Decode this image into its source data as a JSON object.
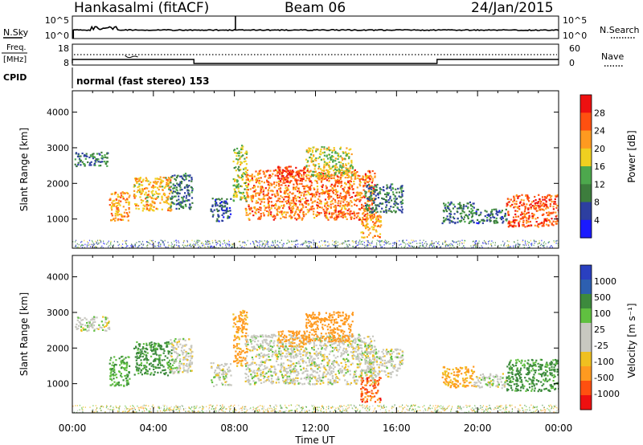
{
  "header": {
    "station": "Hankasalmi (fitACF)",
    "beam": "Beam 06",
    "date": "24/Jan/2015"
  },
  "colors": {
    "power_scale": [
      "#1a1aff",
      "#2d3fa0",
      "#3d7d3d",
      "#4da84d",
      "#f0d020",
      "#ff9a20",
      "#ff5010",
      "#ee1010"
    ],
    "velocity_scale": [
      "#ee1010",
      "#ff5010",
      "#ff9a20",
      "#f0c020",
      "#c8c8c0",
      "#c8c8c0",
      "#60c040",
      "#3d8a3d",
      "#2d5fb0",
      "#2a40c0"
    ]
  },
  "chart_data": [
    {
      "type": "line",
      "name": "sky-noise-panel",
      "left_label": "N.Sky",
      "right_label": "N.Search",
      "left_ticks": [
        "10^5",
        "10^0"
      ],
      "right_ticks": [
        "10^5",
        "10^0"
      ]
    },
    {
      "type": "line",
      "name": "frequency-panel",
      "left_label_top": "Freq.",
      "left_label_bottom": "[MHz]",
      "right_label": "Nave",
      "left_ticks": [
        "18",
        "8"
      ],
      "right_ticks": [
        "60",
        "0"
      ],
      "cpid_label": "CPID",
      "cpid_text": "normal (fast stereo) 153",
      "nave_high_segments": [
        [
          0,
          6
        ],
        [
          18,
          24
        ]
      ],
      "nave_low_segments": [
        [
          6,
          18
        ]
      ]
    },
    {
      "type": "heatmap",
      "name": "power",
      "ylabel": "Slant Range [km]",
      "ylim": [
        180,
        4600
      ],
      "y_ticks": [
        "1000",
        "2000",
        "3000",
        "4000"
      ],
      "xlim": [
        0,
        24
      ],
      "colorbar_label": "Power [dB]",
      "colorbar_ticks": [
        "28",
        "24",
        "20",
        "16",
        "12",
        "8",
        "4"
      ],
      "blobs": [
        {
          "t0": 0.1,
          "t1": 1.8,
          "r0": 2500,
          "r1": 2900,
          "p": 10
        },
        {
          "t0": 1.8,
          "t1": 2.8,
          "r0": 950,
          "r1": 1800,
          "p": 22
        },
        {
          "t0": 3.0,
          "t1": 4.9,
          "r0": 1250,
          "r1": 2200,
          "p": 20
        },
        {
          "t0": 4.8,
          "t1": 5.9,
          "r0": 1300,
          "r1": 2300,
          "p": 9
        },
        {
          "t0": 6.8,
          "t1": 7.8,
          "r0": 950,
          "r1": 1600,
          "p": 7
        },
        {
          "t0": 7.9,
          "t1": 8.6,
          "r0": 1500,
          "r1": 3100,
          "p": 16
        },
        {
          "t0": 8.5,
          "t1": 14.9,
          "r0": 1000,
          "r1": 2400,
          "p": 24
        },
        {
          "t0": 10.1,
          "t1": 11.5,
          "r0": 2050,
          "r1": 2500,
          "p": 28
        },
        {
          "t0": 11.5,
          "t1": 13.8,
          "r0": 2200,
          "r1": 3050,
          "p": 17
        },
        {
          "t0": 14.2,
          "t1": 15.2,
          "r0": 500,
          "r1": 1200,
          "p": 22
        },
        {
          "t0": 14.4,
          "t1": 16.3,
          "r0": 1200,
          "r1": 2000,
          "p": 9
        },
        {
          "t0": 18.2,
          "t1": 19.8,
          "r0": 900,
          "r1": 1500,
          "p": 9
        },
        {
          "t0": 19.8,
          "t1": 21.4,
          "r0": 900,
          "r1": 1300,
          "p": 8
        },
        {
          "t0": 21.4,
          "t1": 24.0,
          "r0": 800,
          "r1": 1700,
          "p": 26
        }
      ]
    },
    {
      "type": "heatmap",
      "name": "velocity",
      "ylabel": "Slant Range [km]",
      "ylim": [
        180,
        4600
      ],
      "y_ticks": [
        "1000",
        "2000",
        "3000",
        "4000"
      ],
      "xlim": [
        0,
        24
      ],
      "xlabel": "Time UT",
      "x_ticks": [
        "00:00",
        "04:00",
        "08:00",
        "12:00",
        "16:00",
        "20:00",
        "00:00"
      ],
      "colorbar_label": "Velocity [m s⁻¹]",
      "colorbar_ticks": [
        "1000",
        "500",
        "100",
        "25",
        "-25",
        "-100",
        "-500",
        "-1000"
      ],
      "blobs": [
        {
          "t0": 0.1,
          "t1": 1.8,
          "r0": 2500,
          "r1": 2900,
          "v": 0
        },
        {
          "t0": 1.8,
          "t1": 2.8,
          "r0": 950,
          "r1": 1800,
          "v": 80
        },
        {
          "t0": 3.0,
          "t1": 4.9,
          "r0": 1250,
          "r1": 2200,
          "v": 150
        },
        {
          "t0": 4.8,
          "t1": 5.9,
          "r0": 1300,
          "r1": 2300,
          "v": 0
        },
        {
          "t0": 6.8,
          "t1": 7.8,
          "r0": 950,
          "r1": 1600,
          "v": 0
        },
        {
          "t0": 7.9,
          "t1": 8.6,
          "r0": 1500,
          "r1": 3100,
          "v": -150
        },
        {
          "t0": 8.5,
          "t1": 14.9,
          "r0": 1000,
          "r1": 2400,
          "v": 0
        },
        {
          "t0": 10.1,
          "t1": 11.5,
          "r0": 2050,
          "r1": 2500,
          "v": -200
        },
        {
          "t0": 11.5,
          "t1": 13.8,
          "r0": 2200,
          "r1": 3050,
          "v": -300
        },
        {
          "t0": 14.2,
          "t1": 15.2,
          "r0": 500,
          "r1": 1200,
          "v": -700
        },
        {
          "t0": 14.4,
          "t1": 16.3,
          "r0": 1200,
          "r1": 2000,
          "v": 0
        },
        {
          "t0": 18.2,
          "t1": 19.8,
          "r0": 900,
          "r1": 1500,
          "v": -120
        },
        {
          "t0": 19.8,
          "t1": 21.4,
          "r0": 900,
          "r1": 1300,
          "v": 0
        },
        {
          "t0": 21.4,
          "t1": 24.0,
          "r0": 800,
          "r1": 1700,
          "v": 150
        }
      ]
    }
  ]
}
